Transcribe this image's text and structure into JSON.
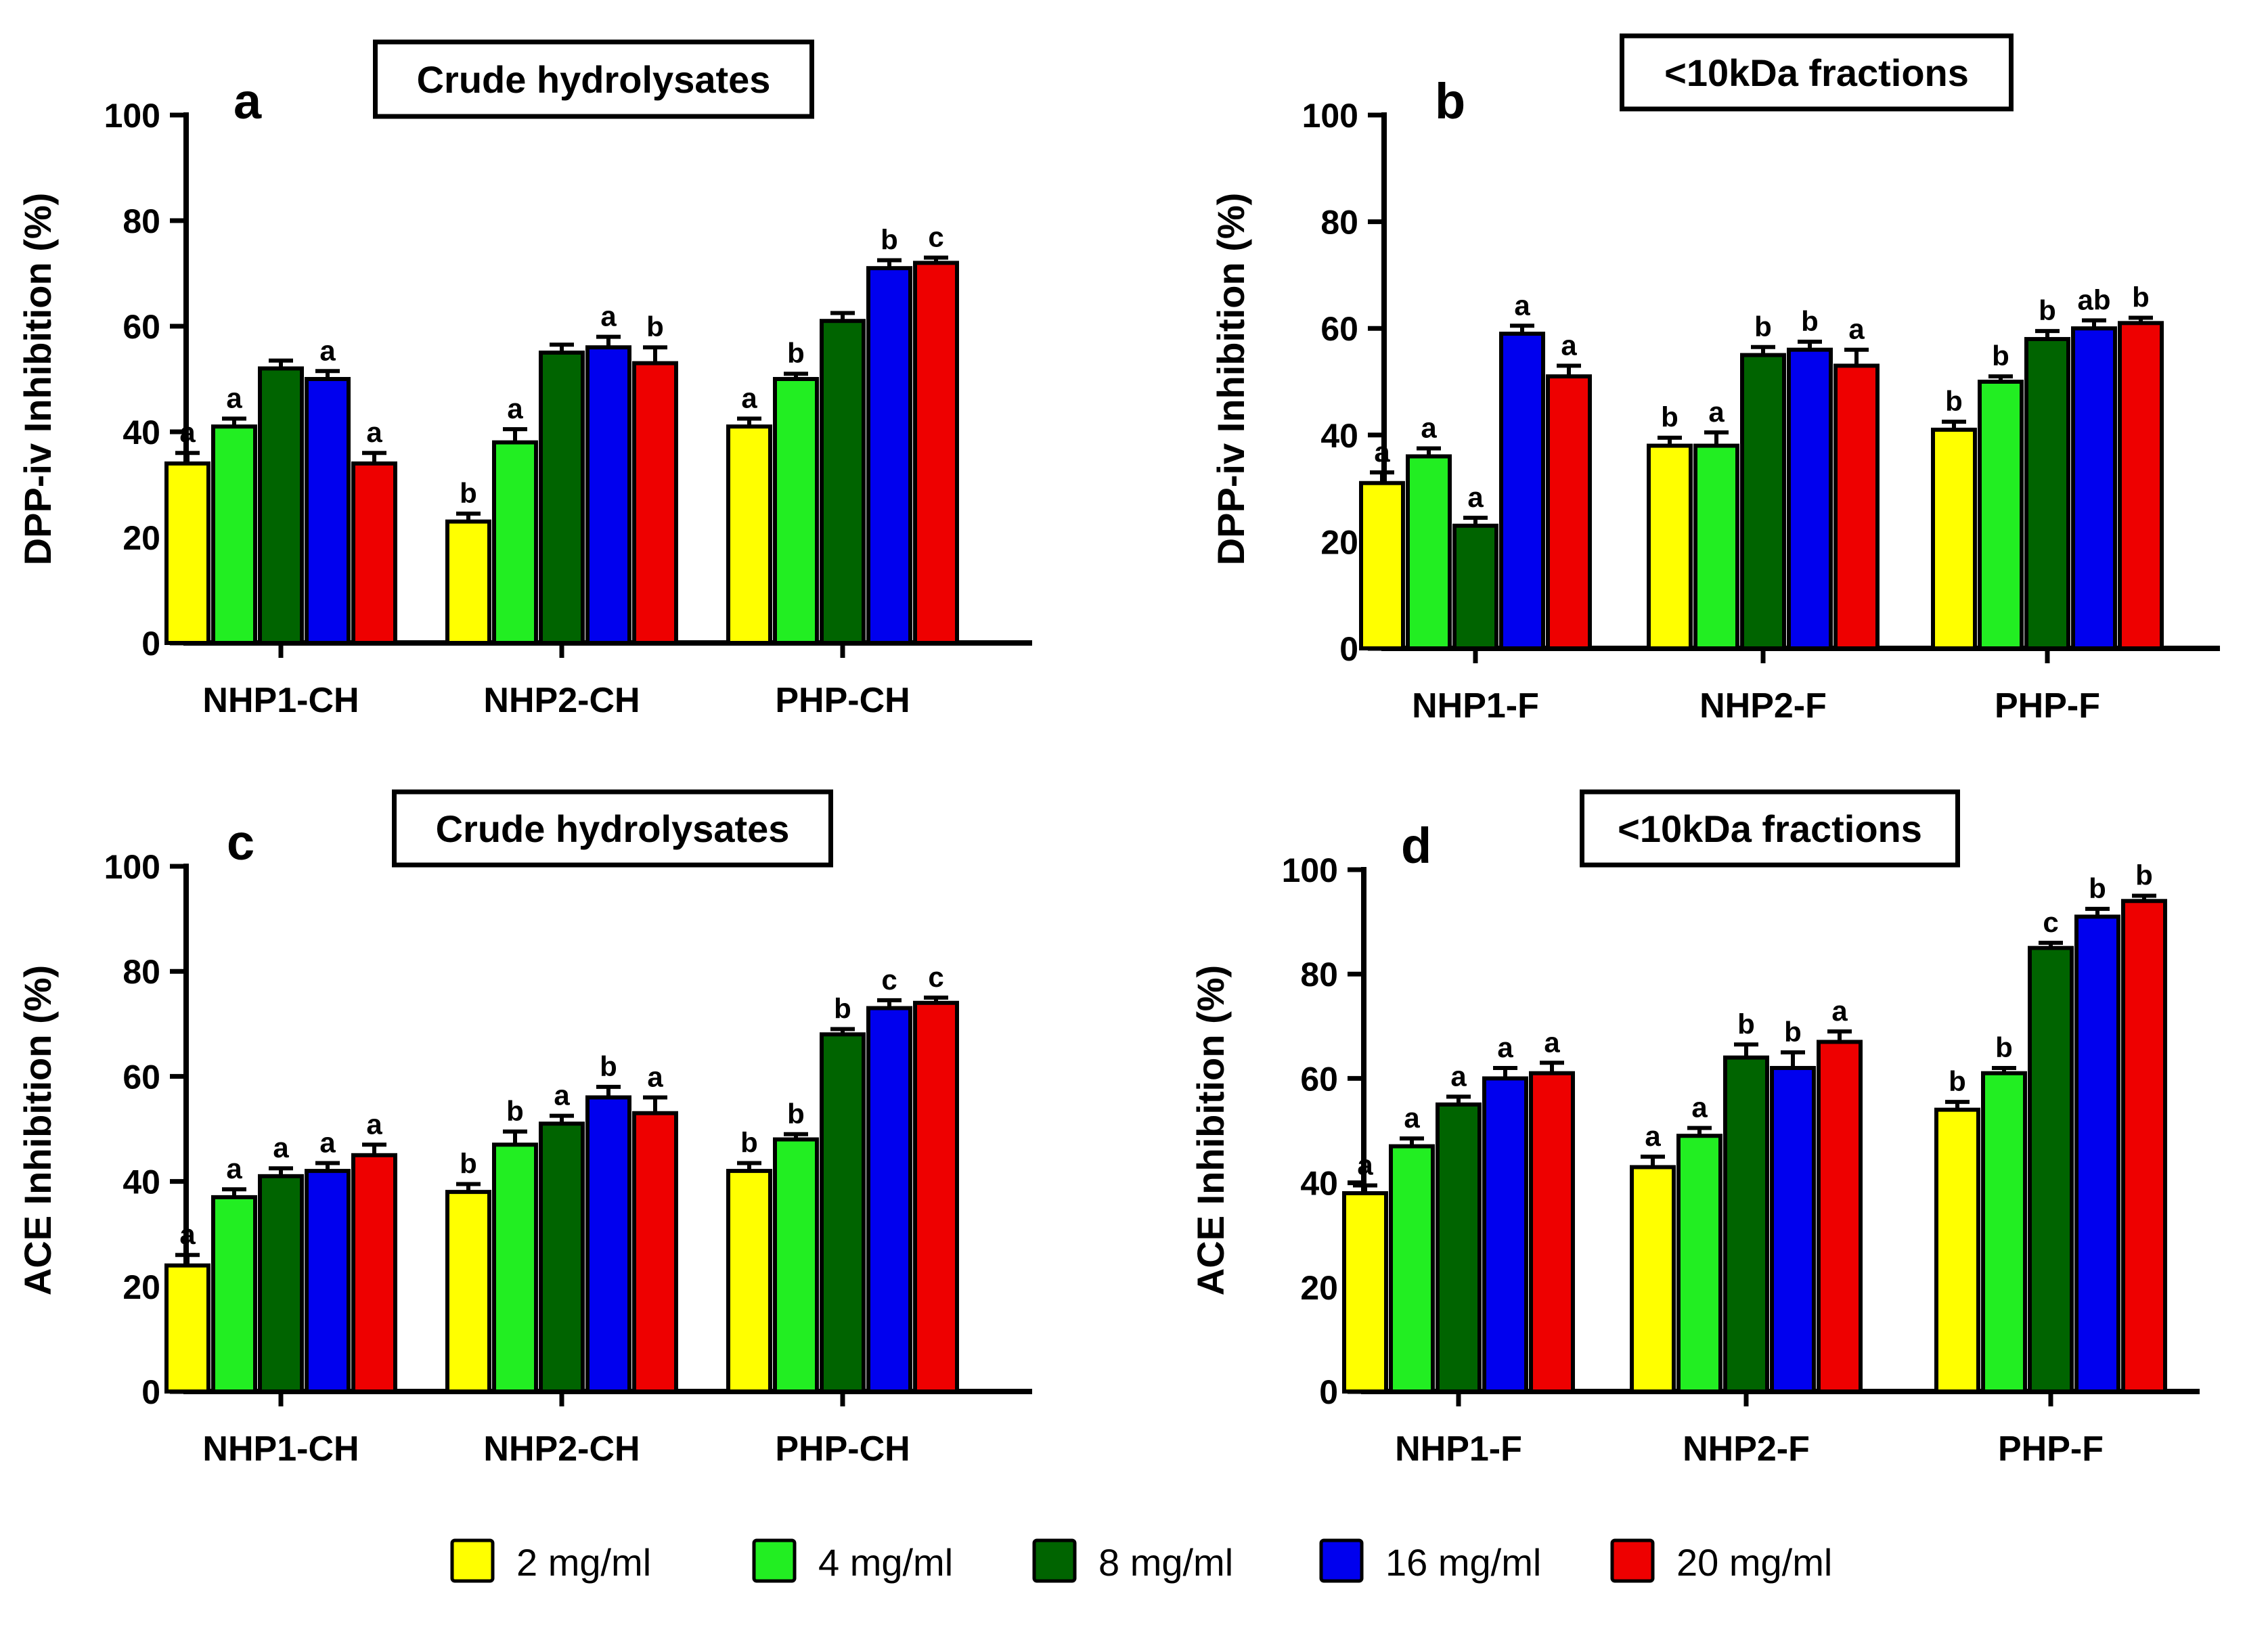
{
  "legend": {
    "items": [
      {
        "label": "2 mg/ml",
        "color": "#FFFF00"
      },
      {
        "label": "4 mg/ml",
        "color": "#22EE22"
      },
      {
        "label": "8 mg/ml",
        "color": "#006400"
      },
      {
        "label": "16 mg/ml",
        "color": "#0000EE"
      },
      {
        "label": "20 mg/ml",
        "color": "#EE0000"
      }
    ]
  },
  "chart_data": [
    {
      "panel": "a",
      "type": "bar",
      "title": "Crude hydrolysates",
      "ylabel": "DPP-iv Inhibition (%)",
      "xlabel": "",
      "ylim": [
        0,
        100
      ],
      "yticks": [
        0,
        20,
        40,
        60,
        80,
        100
      ],
      "categories": [
        "NHP1-CH",
        "NHP2-CH",
        "PHP-CH"
      ],
      "series": [
        {
          "name": "2 mg/ml",
          "values": [
            34,
            23,
            41
          ],
          "errors": [
            2,
            1.5,
            1.5
          ],
          "letters": [
            "a",
            "b",
            "a"
          ]
        },
        {
          "name": "4 mg/ml",
          "values": [
            41,
            38,
            50
          ],
          "errors": [
            1.5,
            2.5,
            1
          ],
          "letters": [
            "a",
            "a",
            "b"
          ]
        },
        {
          "name": "8 mg/ml",
          "values": [
            52,
            55,
            61
          ],
          "errors": [
            1.5,
            1.5,
            1.5
          ],
          "letters": [
            "",
            "",
            ""
          ]
        },
        {
          "name": "16 mg/ml",
          "values": [
            50,
            56,
            71
          ],
          "errors": [
            1.5,
            2,
            1.5
          ],
          "letters": [
            "a",
            "a",
            "b"
          ]
        },
        {
          "name": "20 mg/ml",
          "values": [
            34,
            53,
            72
          ],
          "errors": [
            2,
            3,
            1
          ],
          "letters": [
            "a",
            "b",
            "c"
          ]
        }
      ]
    },
    {
      "panel": "b",
      "type": "bar",
      "title": "<10kDa fractions",
      "ylabel": "DPP-iv Inhibition (%)",
      "xlabel": "",
      "ylim": [
        0,
        100
      ],
      "yticks": [
        0,
        20,
        40,
        60,
        80,
        100
      ],
      "categories": [
        "NHP1-F",
        "NHP2-F",
        "PHP-F"
      ],
      "series": [
        {
          "name": "2 mg/ml",
          "values": [
            31,
            38,
            41
          ],
          "errors": [
            2,
            1.5,
            1.5
          ],
          "letters": [
            "a",
            "b",
            "b"
          ]
        },
        {
          "name": "4 mg/ml",
          "values": [
            36,
            38,
            50
          ],
          "errors": [
            1.5,
            2.5,
            1
          ],
          "letters": [
            "a",
            "a",
            "b"
          ]
        },
        {
          "name": "8 mg/ml",
          "values": [
            23,
            55,
            58
          ],
          "errors": [
            1.5,
            1.5,
            1.5
          ],
          "letters": [
            "a",
            "b",
            "b"
          ]
        },
        {
          "name": "16 mg/ml",
          "values": [
            59,
            56,
            60
          ],
          "errors": [
            1.5,
            1.5,
            1.5
          ],
          "letters": [
            "a",
            "b",
            "ab"
          ]
        },
        {
          "name": "20 mg/ml",
          "values": [
            51,
            53,
            61
          ],
          "errors": [
            2,
            3,
            1
          ],
          "letters": [
            "a",
            "a",
            "b"
          ]
        }
      ]
    },
    {
      "panel": "c",
      "type": "bar",
      "title": "Crude hydrolysates",
      "ylabel": "ACE Inhibition (%)",
      "xlabel": "",
      "ylim": [
        0,
        100
      ],
      "yticks": [
        0,
        20,
        40,
        60,
        80,
        100
      ],
      "categories": [
        "NHP1-CH",
        "NHP2-CH",
        "PHP-CH"
      ],
      "series": [
        {
          "name": "2 mg/ml",
          "values": [
            24,
            38,
            42
          ],
          "errors": [
            2,
            1.5,
            1.5
          ],
          "letters": [
            "a",
            "b",
            "b"
          ]
        },
        {
          "name": "4 mg/ml",
          "values": [
            37,
            47,
            48
          ],
          "errors": [
            1.5,
            2.5,
            1
          ],
          "letters": [
            "a",
            "b",
            "b"
          ]
        },
        {
          "name": "8 mg/ml",
          "values": [
            41,
            51,
            68
          ],
          "errors": [
            1.5,
            1.5,
            1
          ],
          "letters": [
            "a",
            "a",
            "b"
          ]
        },
        {
          "name": "16 mg/ml",
          "values": [
            42,
            56,
            73
          ],
          "errors": [
            1.5,
            2,
            1.5
          ],
          "letters": [
            "a",
            "b",
            "c"
          ]
        },
        {
          "name": "20 mg/ml",
          "values": [
            45,
            53,
            74
          ],
          "errors": [
            2,
            3,
            1
          ],
          "letters": [
            "a",
            "a",
            "c"
          ]
        }
      ]
    },
    {
      "panel": "d",
      "type": "bar",
      "title": "<10kDa fractions",
      "ylabel": "ACE Inhibition (%)",
      "xlabel": "",
      "ylim": [
        0,
        100
      ],
      "yticks": [
        0,
        20,
        40,
        60,
        80,
        100
      ],
      "categories": [
        "NHP1-F",
        "NHP2-F",
        "PHP-F"
      ],
      "series": [
        {
          "name": "2 mg/ml",
          "values": [
            38,
            43,
            54
          ],
          "errors": [
            1.5,
            2,
            1.5
          ],
          "letters": [
            "a",
            "a",
            "b"
          ]
        },
        {
          "name": "4 mg/ml",
          "values": [
            47,
            49,
            61
          ],
          "errors": [
            1.5,
            1.5,
            1
          ],
          "letters": [
            "a",
            "a",
            "b"
          ]
        },
        {
          "name": "8 mg/ml",
          "values": [
            55,
            64,
            85
          ],
          "errors": [
            1.5,
            2.5,
            1
          ],
          "letters": [
            "a",
            "b",
            "c"
          ]
        },
        {
          "name": "16 mg/ml",
          "values": [
            60,
            62,
            91
          ],
          "errors": [
            2,
            3,
            1.5
          ],
          "letters": [
            "a",
            "b",
            "b"
          ]
        },
        {
          "name": "20 mg/ml",
          "values": [
            61,
            67,
            94
          ],
          "errors": [
            2,
            2,
            1
          ],
          "letters": [
            "a",
            "a",
            "b"
          ]
        }
      ]
    }
  ]
}
